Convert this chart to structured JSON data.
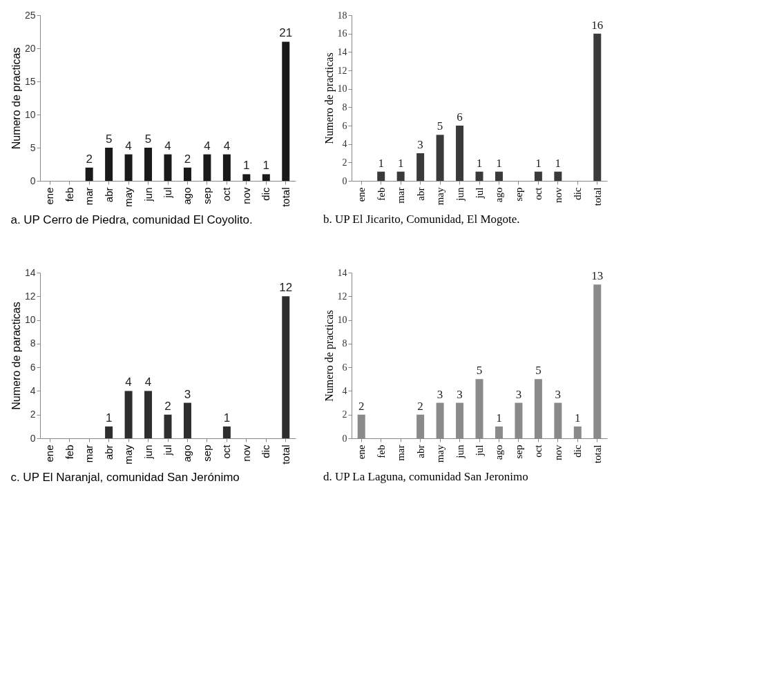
{
  "chart_data": [
    {
      "type": "bar",
      "title": "a. UP Cerro de Piedra, comunidad El Coyolito.",
      "ylabel": "Numero de practicas",
      "categories": [
        "ene",
        "feb",
        "mar",
        "abr",
        "may",
        "jun",
        "jul",
        "ago",
        "sep",
        "oct",
        "nov",
        "dic",
        "total"
      ],
      "values": [
        0,
        0,
        2,
        5,
        4,
        5,
        4,
        2,
        4,
        4,
        1,
        1,
        21
      ],
      "value_labels": [
        null,
        null,
        "2",
        "5",
        "4",
        "5",
        "4",
        "2",
        "4",
        "4",
        "1",
        "1",
        "21"
      ],
      "color": "#1a1a1a",
      "ylim": [
        0,
        25
      ],
      "yticks": [
        0,
        5,
        10,
        15,
        20,
        25
      ]
    },
    {
      "type": "bar",
      "title": "b. UP El Jicarito, Comunidad, El Mogote.",
      "ylabel": "Numero de practicas",
      "categories": [
        "ene",
        "feb",
        "mar",
        "abr",
        "may",
        "jun",
        "jul",
        "ago",
        "sep",
        "oct",
        "nov",
        "dic",
        "total"
      ],
      "values": [
        0,
        1,
        1,
        3,
        5,
        6,
        1,
        1,
        0,
        1,
        1,
        0,
        16
      ],
      "value_labels": [
        null,
        "1",
        "1",
        "3",
        "5",
        "6",
        "1",
        "1",
        null,
        "1",
        "1",
        null,
        "16"
      ],
      "color": "#3a3a3a",
      "ylim": [
        0,
        18
      ],
      "yticks": [
        0,
        2,
        4,
        6,
        8,
        10,
        12,
        14,
        16,
        18
      ]
    },
    {
      "type": "bar",
      "title": "c. UP El Naranjal, comunidad San Jerónimo",
      "ylabel": "Numero de paracticas",
      "categories": [
        "ene",
        "feb",
        "mar",
        "abr",
        "may",
        "jun",
        "jul",
        "ago",
        "sep",
        "oct",
        "nov",
        "dic",
        "total"
      ],
      "values": [
        0,
        0,
        0,
        1,
        4,
        4,
        2,
        3,
        0,
        1,
        0,
        0,
        12
      ],
      "value_labels": [
        null,
        null,
        null,
        "1",
        "4",
        "4",
        "2",
        "3",
        null,
        "1",
        null,
        null,
        "12"
      ],
      "color": "#2e2e2e",
      "ylim": [
        0,
        14
      ],
      "yticks": [
        0,
        2,
        4,
        6,
        8,
        10,
        12,
        14
      ]
    },
    {
      "type": "bar",
      "title": "d. UP La Laguna, comunidad San Jeronimo",
      "ylabel": "Numero de practicas",
      "categories": [
        "ene",
        "feb",
        "mar",
        "abr",
        "may",
        "jun",
        "jul",
        "ago",
        "sep",
        "oct",
        "nov",
        "dic",
        "total"
      ],
      "values": [
        2,
        0,
        0,
        2,
        3,
        3,
        5,
        1,
        3,
        5,
        3,
        1,
        13
      ],
      "value_labels": [
        "2",
        null,
        null,
        "2",
        "3",
        "3",
        "5",
        "1",
        "3",
        "5",
        "3",
        "1",
        "13"
      ],
      "color": "#8a8a8a",
      "ylim": [
        0,
        14
      ],
      "yticks": [
        0,
        2,
        4,
        6,
        8,
        10,
        12,
        14
      ]
    }
  ]
}
